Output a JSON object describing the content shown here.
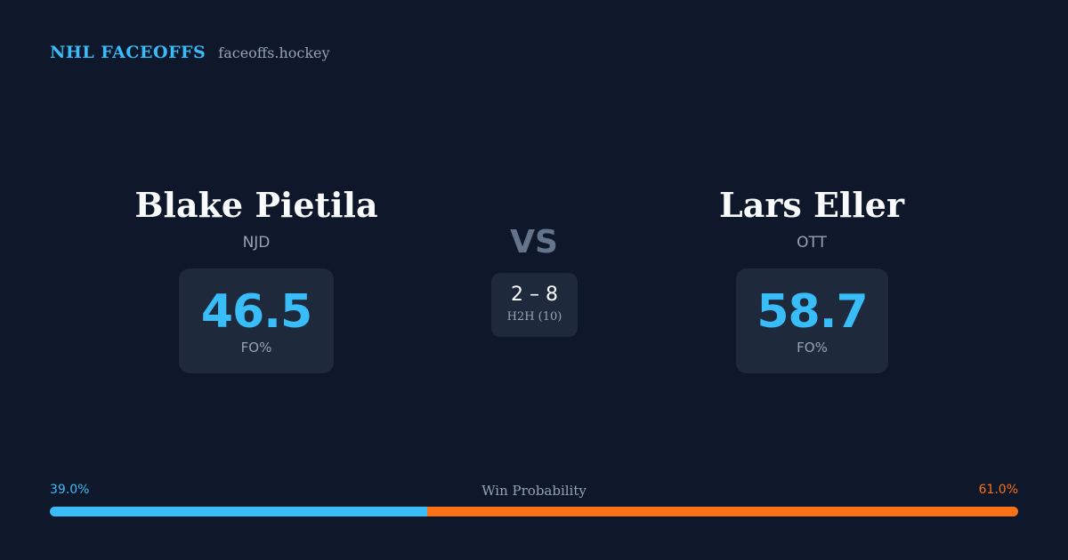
{
  "brand": {
    "title": "NHL FACEOFFS",
    "url": "faceoffs.hockey"
  },
  "players": {
    "left": {
      "name": "Blake Pietila",
      "team": "NJD",
      "fo_pct": "46.5",
      "fo_label": "FO%"
    },
    "right": {
      "name": "Lars Eller",
      "team": "OTT",
      "fo_pct": "58.7",
      "fo_label": "FO%"
    }
  },
  "versus": {
    "label": "VS",
    "h2h_score": "2 – 8",
    "h2h_label": "H2H (10)"
  },
  "win_probability": {
    "title": "Win Probability",
    "left_label": "39.0%",
    "right_label": "61.0%",
    "left_value": 39.0,
    "right_value": 61.0
  },
  "colors": {
    "background": "#0f172a",
    "card": "#1e293b",
    "accent_blue": "#38bdf8",
    "accent_orange": "#f97316",
    "muted": "#94a3b8"
  }
}
